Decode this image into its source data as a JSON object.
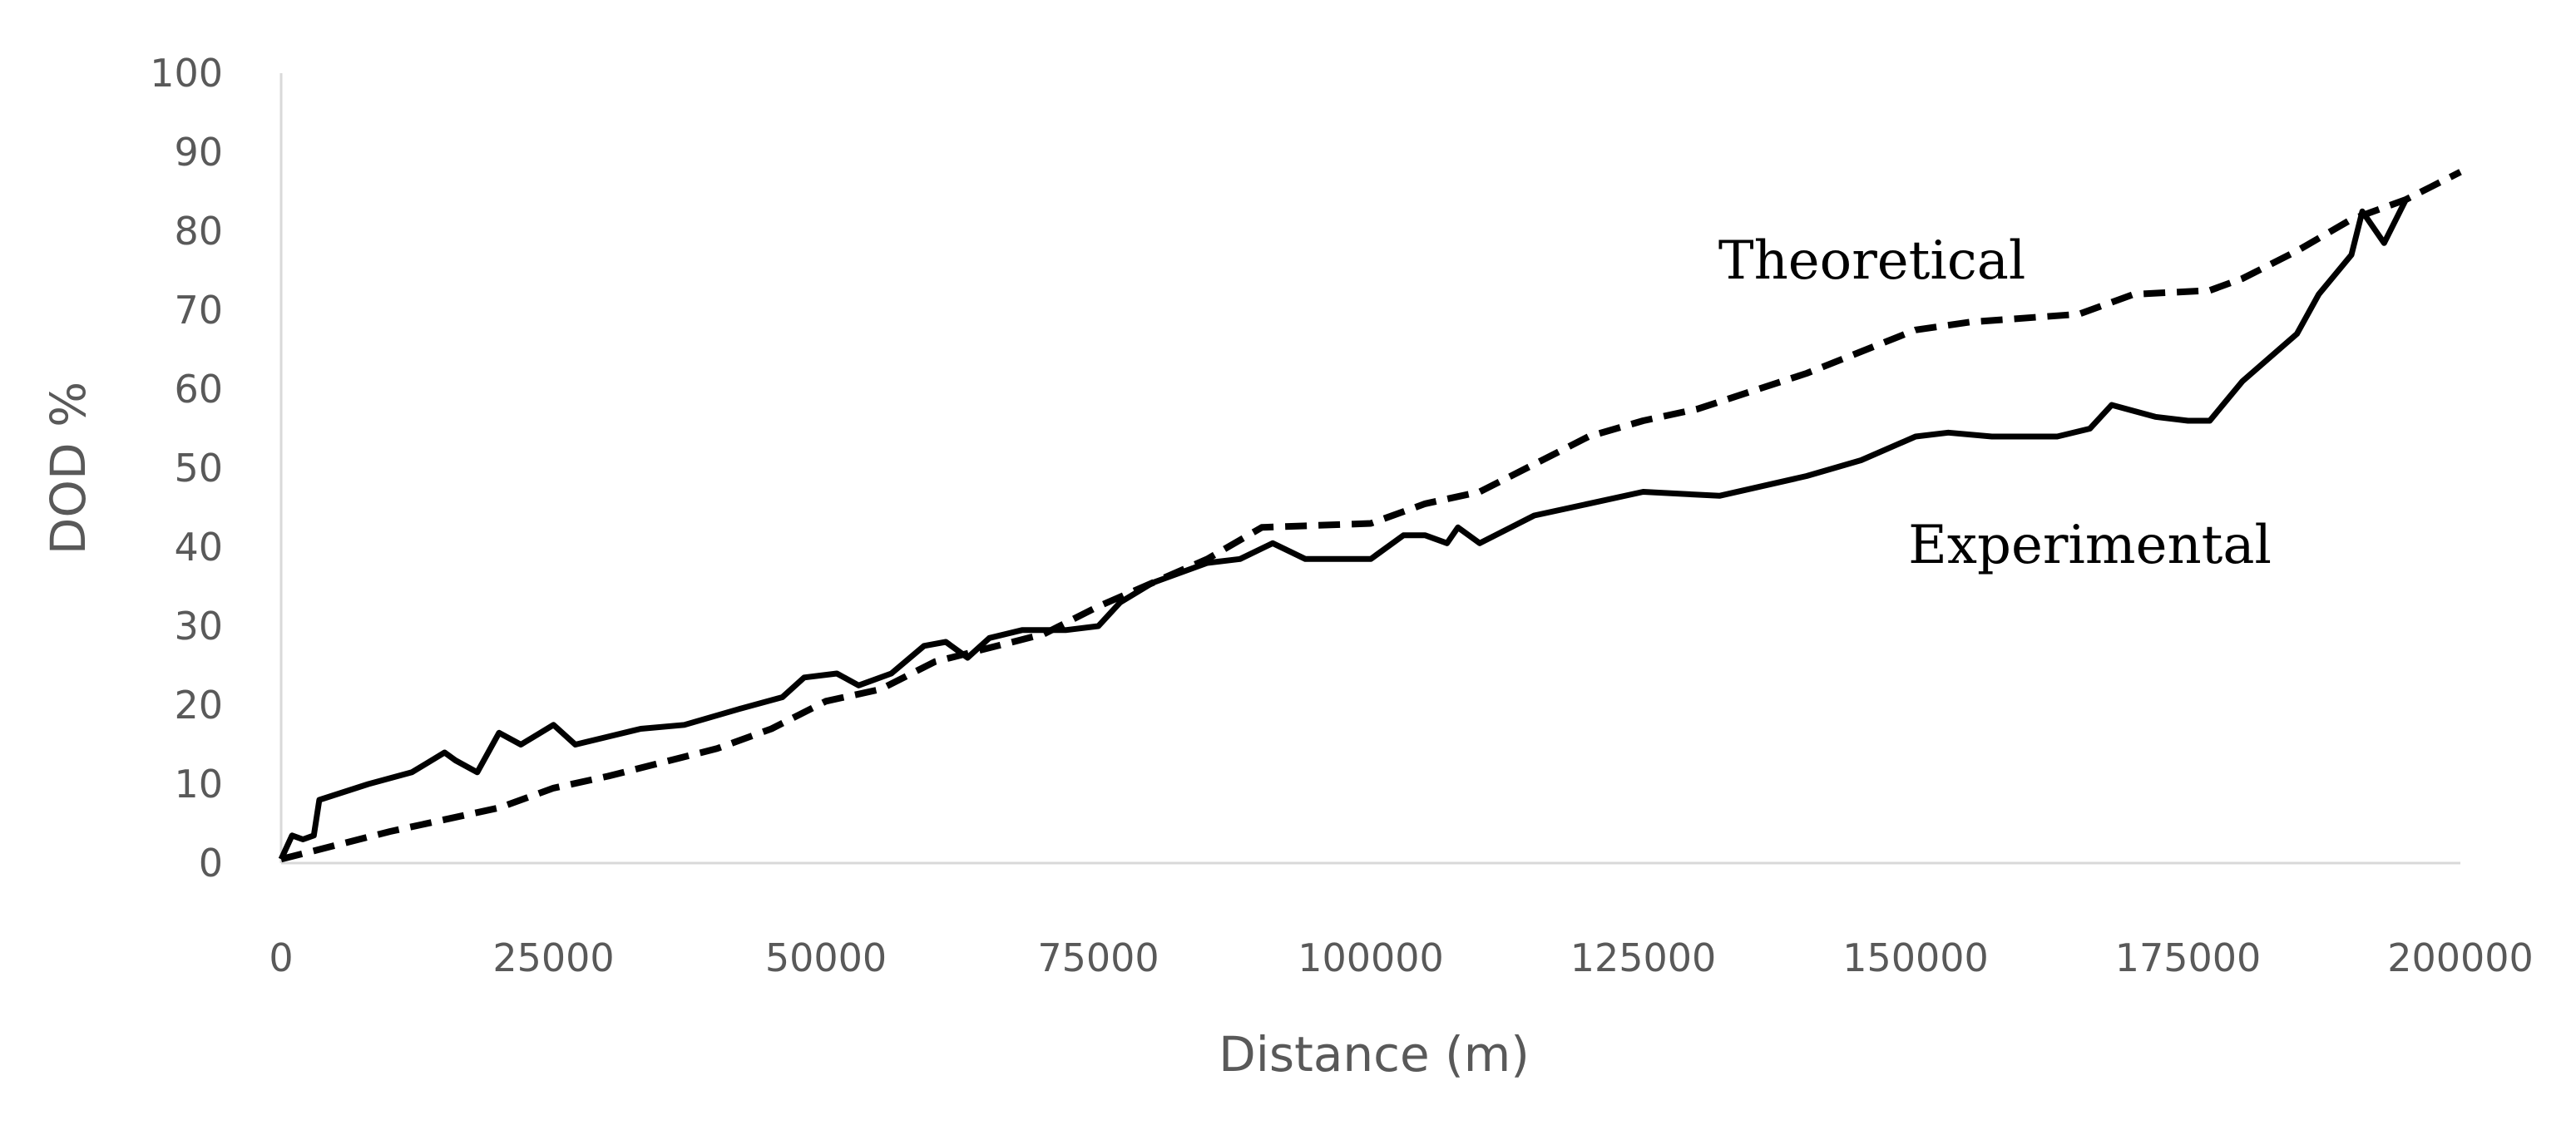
{
  "chart_data": {
    "type": "line",
    "title": "",
    "xlabel": "Distance (m)",
    "ylabel": "DOD %",
    "xlim": [
      0,
      200000
    ],
    "ylim": [
      0,
      100
    ],
    "x_ticks": [
      0,
      25000,
      50000,
      75000,
      100000,
      125000,
      150000,
      175000,
      200000
    ],
    "y_ticks": [
      0,
      10,
      20,
      30,
      40,
      50,
      60,
      70,
      80,
      90,
      100
    ],
    "x_tick_labels": [
      "0",
      "25000",
      "50000",
      "75000",
      "100000",
      "125000",
      "150000",
      "175000",
      "200000"
    ],
    "y_tick_labels": [
      "0",
      "10",
      "20",
      "30",
      "40",
      "50",
      "60",
      "70",
      "80",
      "90",
      "100"
    ],
    "grid": false,
    "legend": "none",
    "series": [
      {
        "name": "Theoretical",
        "style": "dashed",
        "color": "#000000",
        "points": [
          [
            0,
            0.5
          ],
          [
            10000,
            4
          ],
          [
            20000,
            7
          ],
          [
            25000,
            9.5
          ],
          [
            30000,
            11
          ],
          [
            40000,
            14.5
          ],
          [
            45000,
            17
          ],
          [
            50000,
            20.5
          ],
          [
            55000,
            22
          ],
          [
            60000,
            25.5
          ],
          [
            70000,
            29
          ],
          [
            75000,
            32.5
          ],
          [
            80000,
            35.5
          ],
          [
            85000,
            38.5
          ],
          [
            90000,
            42.5
          ],
          [
            100000,
            43
          ],
          [
            105000,
            45.5
          ],
          [
            110000,
            47
          ],
          [
            115000,
            50.5
          ],
          [
            120000,
            54
          ],
          [
            125000,
            56
          ],
          [
            130000,
            57.5
          ],
          [
            140000,
            62
          ],
          [
            150000,
            67.5
          ],
          [
            155000,
            68.5
          ],
          [
            165000,
            69.5
          ],
          [
            170000,
            72
          ],
          [
            177000,
            72.5
          ],
          [
            180000,
            74
          ],
          [
            185000,
            77.5
          ],
          [
            190000,
            81.5
          ],
          [
            195000,
            84
          ],
          [
            200000,
            87.5
          ]
        ]
      },
      {
        "name": "Experimental",
        "style": "solid",
        "color": "#000000",
        "points": [
          [
            0,
            0.5
          ],
          [
            1000,
            3.5
          ],
          [
            2000,
            3
          ],
          [
            3000,
            3.5
          ],
          [
            3500,
            8
          ],
          [
            8000,
            10
          ],
          [
            12000,
            11.5
          ],
          [
            15000,
            14
          ],
          [
            16000,
            13
          ],
          [
            18000,
            11.5
          ],
          [
            20000,
            16.5
          ],
          [
            22000,
            15
          ],
          [
            25000,
            17.5
          ],
          [
            27000,
            15
          ],
          [
            30000,
            16
          ],
          [
            33000,
            17
          ],
          [
            37000,
            17.5
          ],
          [
            42000,
            19.5
          ],
          [
            46000,
            21
          ],
          [
            48000,
            23.5
          ],
          [
            51000,
            24
          ],
          [
            53000,
            22.5
          ],
          [
            56000,
            24
          ],
          [
            59000,
            27.5
          ],
          [
            61000,
            28
          ],
          [
            63000,
            26
          ],
          [
            65000,
            28.5
          ],
          [
            68000,
            29.5
          ],
          [
            72000,
            29.5
          ],
          [
            75000,
            30
          ],
          [
            77000,
            33
          ],
          [
            80000,
            35.5
          ],
          [
            85000,
            38
          ],
          [
            88000,
            38.5
          ],
          [
            91000,
            40.5
          ],
          [
            94000,
            38.5
          ],
          [
            100000,
            38.5
          ],
          [
            103000,
            41.5
          ],
          [
            105000,
            41.5
          ],
          [
            107000,
            40.5
          ],
          [
            108000,
            42.5
          ],
          [
            110000,
            40.5
          ],
          [
            115000,
            44
          ],
          [
            120000,
            45.5
          ],
          [
            125000,
            47
          ],
          [
            132000,
            46.5
          ],
          [
            140000,
            49
          ],
          [
            145000,
            51
          ],
          [
            150000,
            54
          ],
          [
            153000,
            54.5
          ],
          [
            157000,
            54
          ],
          [
            163000,
            54
          ],
          [
            166000,
            55
          ],
          [
            168000,
            58
          ],
          [
            172000,
            56.5
          ],
          [
            175000,
            56
          ],
          [
            177000,
            56
          ],
          [
            180000,
            61
          ],
          [
            185000,
            67
          ],
          [
            187000,
            72
          ],
          [
            190000,
            77
          ],
          [
            191000,
            82.5
          ],
          [
            193000,
            78.5
          ],
          [
            195000,
            84
          ]
        ]
      }
    ],
    "annotations": [
      {
        "text": "Theoretical",
        "x": 146000,
        "y": 74
      },
      {
        "text": "Experimental",
        "x": 166000,
        "y": 38
      }
    ]
  }
}
